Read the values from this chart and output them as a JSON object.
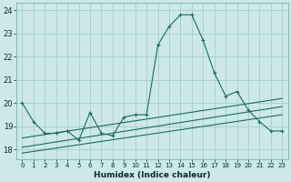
{
  "xlabel": "Humidex (Indice chaleur)",
  "bg_color": "#cce8e8",
  "grid_color": "#aacccc",
  "line_color": "#1a6b5a",
  "x_ticks": [
    0,
    1,
    2,
    3,
    4,
    5,
    6,
    7,
    8,
    9,
    10,
    11,
    12,
    13,
    14,
    15,
    16,
    17,
    18,
    19,
    20,
    21,
    22,
    23
  ],
  "xlim": [
    -0.5,
    23.5
  ],
  "ylim": [
    17.6,
    24.3
  ],
  "yticks": [
    18,
    19,
    20,
    21,
    22,
    23,
    24
  ],
  "main_line": {
    "x": [
      0,
      1,
      2,
      3,
      4,
      5,
      6,
      7,
      8,
      9,
      10,
      11,
      12,
      13,
      14,
      15,
      16,
      17,
      18,
      19,
      20,
      21,
      22,
      23
    ],
    "y": [
      20.0,
      19.2,
      18.7,
      18.7,
      18.8,
      18.4,
      19.6,
      18.7,
      18.6,
      19.4,
      19.5,
      19.5,
      22.5,
      23.3,
      23.8,
      23.8,
      22.7,
      21.3,
      20.3,
      20.5,
      19.7,
      19.2,
      18.8,
      18.8
    ]
  },
  "ref_line1": {
    "x": [
      0,
      23
    ],
    "y": [
      18.1,
      19.85
    ]
  },
  "ref_line2": {
    "x": [
      0,
      23
    ],
    "y": [
      18.5,
      20.2
    ]
  },
  "ref_line3": {
    "x": [
      0,
      23
    ],
    "y": [
      17.85,
      19.5
    ]
  }
}
